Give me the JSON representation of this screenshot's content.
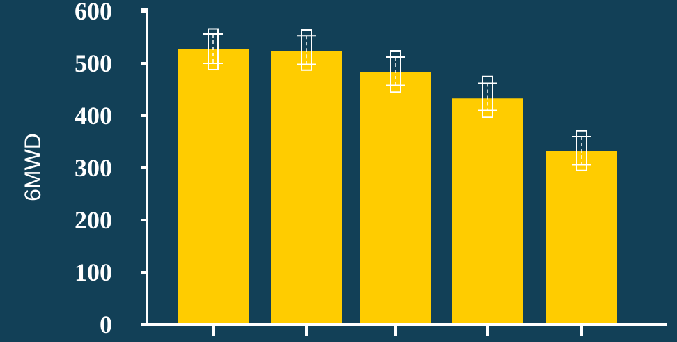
{
  "colors": {
    "background": "#124057",
    "bar": "#ffcc00",
    "axis": "#ffffff",
    "error_bar": "#ffffff"
  },
  "chart_data": {
    "type": "bar",
    "title": "",
    "xlabel": "",
    "ylabel": "6MWD",
    "ylim": [
      0,
      600
    ],
    "y_ticks": [
      0,
      100,
      200,
      300,
      400,
      500,
      600
    ],
    "categories": [
      "",
      "",
      "",
      "",
      ""
    ],
    "values": [
      527,
      524,
      484,
      433,
      332
    ],
    "error_box": [
      [
        488,
        566
      ],
      [
        487,
        564
      ],
      [
        445,
        524
      ],
      [
        397,
        475
      ],
      [
        295,
        371
      ]
    ],
    "error_whisker": [
      [
        500,
        556
      ],
      [
        498,
        553
      ],
      [
        458,
        512
      ],
      [
        410,
        462
      ],
      [
        306,
        360
      ]
    ],
    "grid": false,
    "legend": "none"
  }
}
